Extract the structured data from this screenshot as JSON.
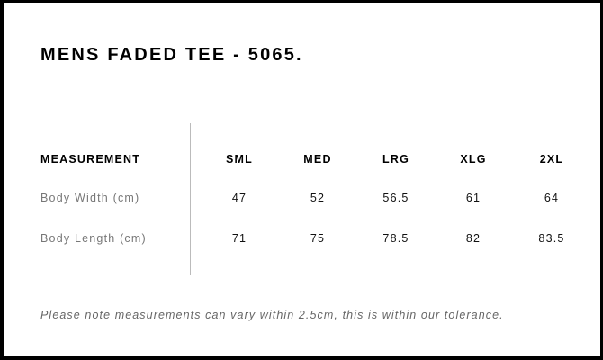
{
  "title": "MENS FADED TEE - 5065.",
  "table": {
    "header_label": "MEASUREMENT",
    "sizes": [
      "SML",
      "MED",
      "LRG",
      "XLG",
      "2XL"
    ],
    "rows": [
      {
        "label": "Body Width (cm)",
        "values": [
          "47",
          "52",
          "56.5",
          "61",
          "64"
        ]
      },
      {
        "label": "Body Length (cm)",
        "values": [
          "71",
          "75",
          "78.5",
          "82",
          "83.5"
        ]
      }
    ]
  },
  "note": "Please note measurements can vary within 2.5cm, this is within our tolerance."
}
